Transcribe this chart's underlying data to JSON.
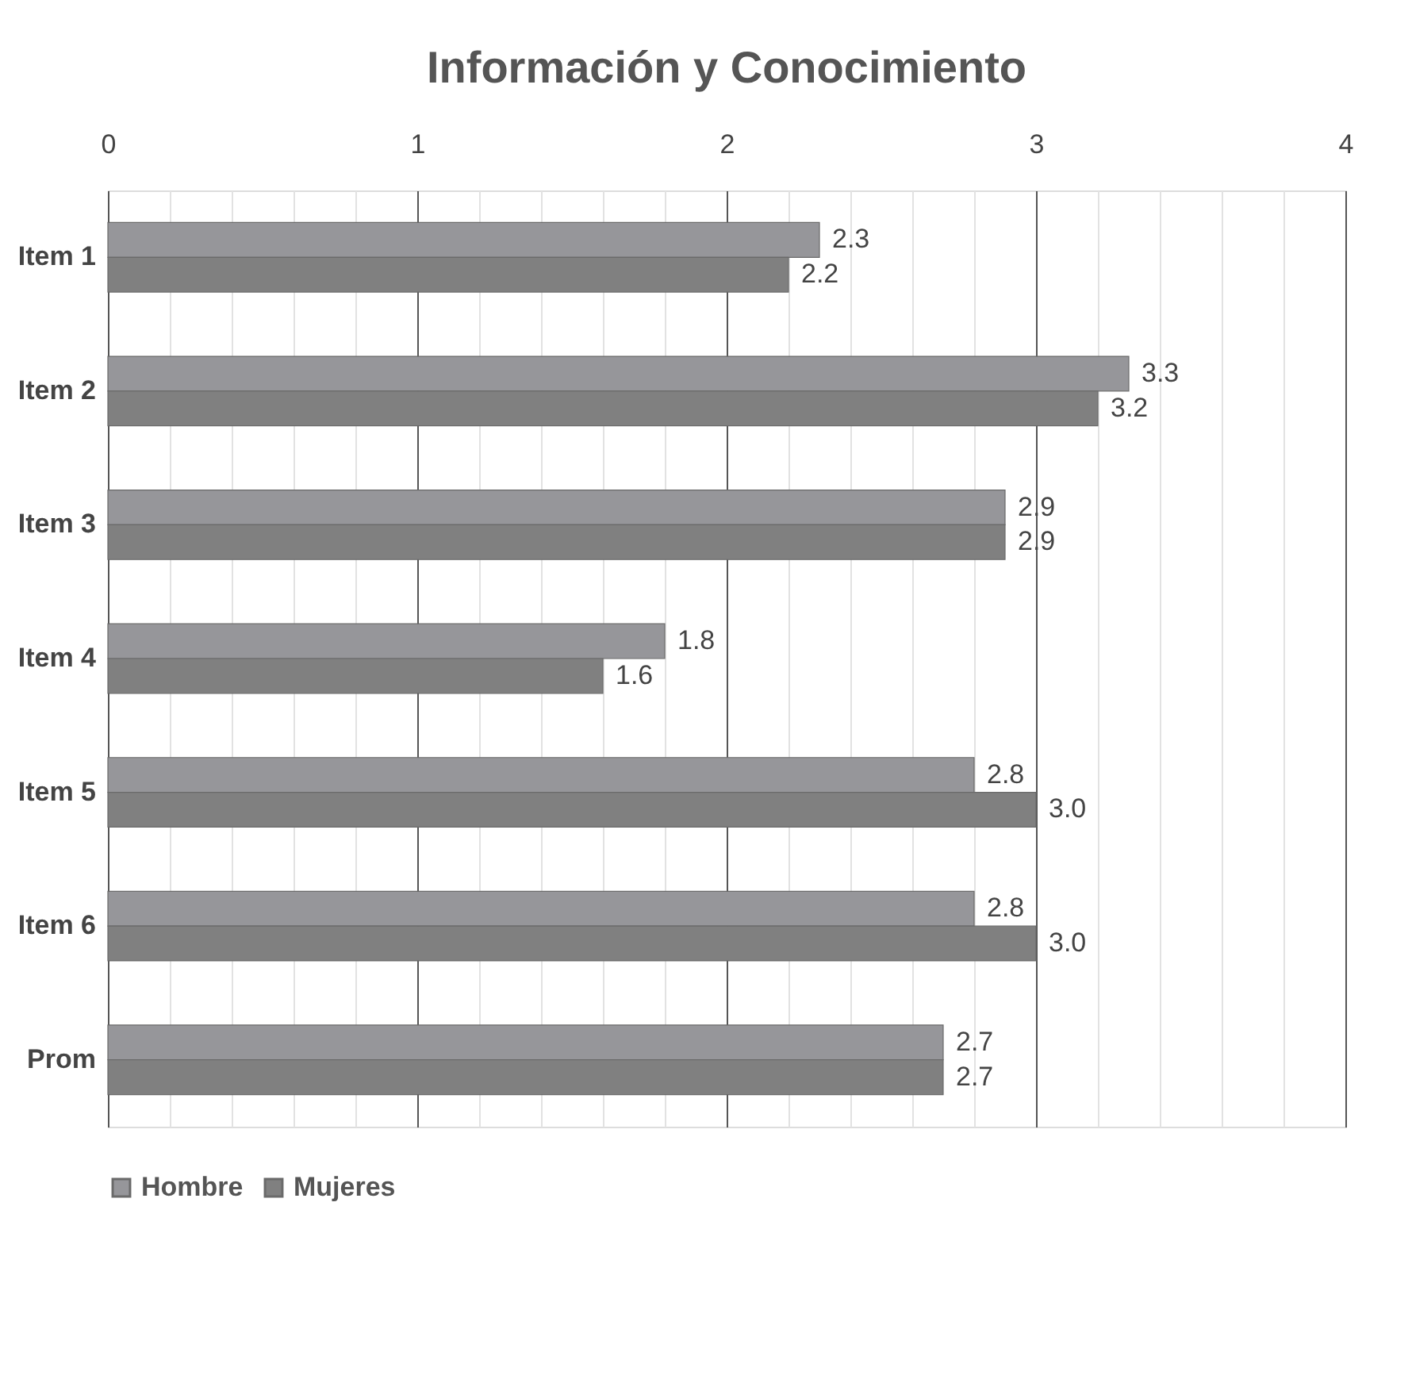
{
  "chart_data": {
    "type": "bar",
    "orientation": "horizontal",
    "title": "Información y Conocimiento",
    "categories": [
      "Item 1",
      "Item 2",
      "Item 3",
      "Item 4",
      "Item 5",
      "Item 6",
      "Prom"
    ],
    "series": [
      {
        "name": "Hombre",
        "color": "#96969a",
        "values": [
          2.3,
          3.3,
          2.9,
          1.8,
          2.8,
          2.8,
          2.7
        ],
        "value_labels": [
          "2.3",
          "3.3",
          "2.9",
          "1.8",
          "2.8",
          "2.8",
          "2.7"
        ]
      },
      {
        "name": "Mujeres",
        "color": "#808080",
        "values": [
          2.2,
          3.2,
          2.9,
          1.6,
          3.0,
          3.0,
          2.7
        ],
        "value_labels": [
          "2.2",
          "3.2",
          "2.9",
          "1.6",
          "3.0",
          "3.0",
          "2.7"
        ]
      }
    ],
    "xlim": [
      0,
      4
    ],
    "xticks": [
      0,
      {
        "value": 0.2,
        "label": null
      },
      {
        "value": 0.4,
        "label": null
      },
      {
        "value": 0.6,
        "label": null
      },
      {
        "value": 0.8,
        "label": null
      },
      1,
      {
        "value": 1.2,
        "label": null
      },
      {
        "value": 1.4,
        "label": null
      },
      {
        "value": 1.6,
        "label": null
      },
      {
        "value": 1.8,
        "label": null
      },
      2,
      {
        "value": 2.2,
        "label": null
      },
      {
        "value": 2.4,
        "label": null
      },
      {
        "value": 2.6,
        "label": null
      },
      {
        "value": 2.8,
        "label": null
      },
      3,
      {
        "value": 3.2,
        "label": null
      },
      {
        "value": 3.4,
        "label": null
      },
      {
        "value": 3.6,
        "label": null
      },
      {
        "value": 3.8,
        "label": null
      },
      4
    ],
    "grid": true,
    "legend": "bottom"
  }
}
